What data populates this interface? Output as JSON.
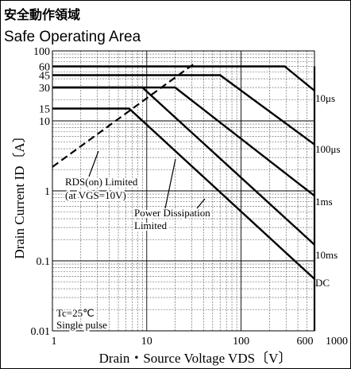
{
  "header": {
    "title_jp": "安全動作領域",
    "title_en": "Safe Operating Area"
  },
  "chart_data": {
    "type": "line",
    "title": "Safe Operating Area",
    "xlabel": "Drain・Source Voltage  VDS〔V〕",
    "ylabel": "Drain Current  ID〔A〕",
    "x_scale": "log",
    "y_scale": "log",
    "xlim": [
      1,
      1000
    ],
    "ylim": [
      0.01,
      100
    ],
    "grid": true,
    "x_ticks": [
      {
        "value": 1,
        "label": "1"
      },
      {
        "value": 10,
        "label": "10"
      },
      {
        "value": 100,
        "label": "100"
      },
      {
        "value": 600,
        "label": "600"
      },
      {
        "value": 1000,
        "label": "1000"
      }
    ],
    "y_ticks": [
      {
        "value": 100,
        "label": "100"
      },
      {
        "value": 60,
        "label": "60"
      },
      {
        "value": 45,
        "label": "45"
      },
      {
        "value": 30,
        "label": "30"
      },
      {
        "value": 15,
        "label": "15"
      },
      {
        "value": 10,
        "label": "10"
      },
      {
        "value": 1,
        "label": "1"
      },
      {
        "value": 0.1,
        "label": "0.1"
      },
      {
        "value": 0.01,
        "label": "0.01"
      }
    ],
    "series": [
      {
        "name": "10μs",
        "label": "10μs",
        "style": "solid",
        "points": [
          [
            1,
            60
          ],
          [
            290,
            60
          ],
          [
            600,
            27
          ]
        ]
      },
      {
        "name": "100μs",
        "label": "100μs",
        "style": "solid",
        "points": [
          [
            1,
            45
          ],
          [
            60,
            45
          ],
          [
            600,
            4.6
          ]
        ]
      },
      {
        "name": "1ms",
        "label": "1ms",
        "style": "solid",
        "points": [
          [
            1,
            30
          ],
          [
            20,
            30
          ],
          [
            600,
            0.85
          ]
        ]
      },
      {
        "name": "10ms",
        "label": "10ms",
        "style": "solid",
        "points": [
          [
            1,
            30
          ],
          [
            9,
            30
          ],
          [
            600,
            0.17
          ]
        ]
      },
      {
        "name": "DC",
        "label": "DC",
        "style": "solid",
        "points": [
          [
            1,
            15
          ],
          [
            6.5,
            15
          ],
          [
            600,
            0.055
          ]
        ]
      },
      {
        "name": "600V limit",
        "label": "",
        "style": "solid",
        "points": [
          [
            600,
            60
          ],
          [
            600,
            0.01
          ]
        ]
      },
      {
        "name": "RDS(on) Limited",
        "label": "",
        "style": "dashed",
        "points": [
          [
            1,
            2.2
          ],
          [
            33,
            68
          ]
        ]
      }
    ],
    "annotations": [
      {
        "name": "rds-on-label",
        "lines": [
          "RDS(on) Limited",
          "(at VGS=10V)"
        ]
      },
      {
        "name": "power-dissipation-label",
        "lines": [
          "Power Dissipation",
          "Limited"
        ]
      },
      {
        "name": "conditions-label",
        "lines": [
          "Tc=25℃",
          "Single pulse"
        ]
      }
    ]
  }
}
